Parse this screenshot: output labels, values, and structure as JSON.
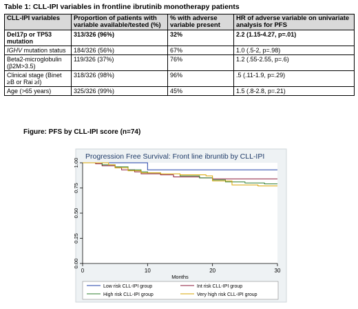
{
  "table": {
    "title": "Table 1: CLL-IPI variables in frontline ibrutinib monotherapy patients",
    "headers": [
      "CLL-IPI variables",
      "Proportion of patients with variable available/tested (%)",
      "% with adverse variable present",
      "HR of adverse variable on univariate analysis for PFS"
    ],
    "rows": [
      {
        "variable": "Del17p or TP53 mutation",
        "proportion": "313/326 (96%)",
        "adverse": "32%",
        "hr": "2.2 (1.15-4.27, p=.01)"
      },
      {
        "variable_italic": "IGHV",
        "variable": " mutation status",
        "proportion": "184/326 (56%)",
        "adverse": "67%",
        "hr": "1.0 (.5-2, p=.98)"
      },
      {
        "variable": "Beta2-microglobulin (β2M>3.5)",
        "proportion": "119/326 (37%)",
        "adverse": "76%",
        "hr": "1.2 (.55-2.55, p=.6)"
      },
      {
        "variable": "Clinical stage (Binet ≥B or Rai ≥I)",
        "proportion": "318/326 (98%)",
        "adverse": "96%",
        "hr": ".5 (.11-1.9, p=.29)"
      },
      {
        "variable": "Age (>65 years)",
        "proportion": "325/326 (99%)",
        "adverse": "45%",
        "hr": "1.5 (.8-2.8, p=.21)"
      }
    ]
  },
  "figure": {
    "caption": "Figure: PFS by CLL-IPI score (n=74)"
  },
  "chart_data": {
    "type": "line",
    "title": "Progression Free Survival: Front line ibruntib by CLL-IPI",
    "xlabel": "Months",
    "ylabel": "",
    "xlim": [
      0,
      30
    ],
    "ylim": [
      0,
      1
    ],
    "xticks": [
      "0",
      "10",
      "20",
      "30"
    ],
    "yticks": [
      "0.00",
      "0.25",
      "0.50",
      "0.75",
      "1.00"
    ],
    "legend_position": "bottom",
    "series": [
      {
        "name": "Low risk CLL-IPI group",
        "color": "#1f3fa8",
        "x": [
          0,
          9,
          10,
          30
        ],
        "y": [
          1.0,
          1.0,
          0.93,
          0.93
        ]
      },
      {
        "name": "Int risk CLL-IPI group",
        "color": "#8b1a3a",
        "x": [
          0,
          2,
          3,
          5,
          6,
          8,
          9,
          12,
          14,
          18,
          20,
          27,
          30
        ],
        "y": [
          1.0,
          0.99,
          0.97,
          0.95,
          0.93,
          0.91,
          0.89,
          0.88,
          0.86,
          0.85,
          0.84,
          0.84,
          0.84
        ]
      },
      {
        "name": "High risk CLL-IPI group",
        "color": "#2e7d2e",
        "x": [
          0,
          3,
          5,
          7,
          9,
          10,
          12,
          15,
          18,
          20,
          22,
          25,
          28,
          30
        ],
        "y": [
          1.0,
          0.98,
          0.96,
          0.93,
          0.91,
          0.9,
          0.89,
          0.87,
          0.85,
          0.83,
          0.81,
          0.8,
          0.79,
          0.79
        ]
      },
      {
        "name": "Very high risk CLL-IPI group",
        "color": "#d9a500",
        "x": [
          0,
          4,
          5,
          7,
          9,
          12,
          15,
          19,
          20,
          23,
          27,
          30
        ],
        "y": [
          1.0,
          0.98,
          0.95,
          0.92,
          0.9,
          0.89,
          0.88,
          0.87,
          0.82,
          0.78,
          0.77,
          0.77
        ]
      }
    ]
  }
}
